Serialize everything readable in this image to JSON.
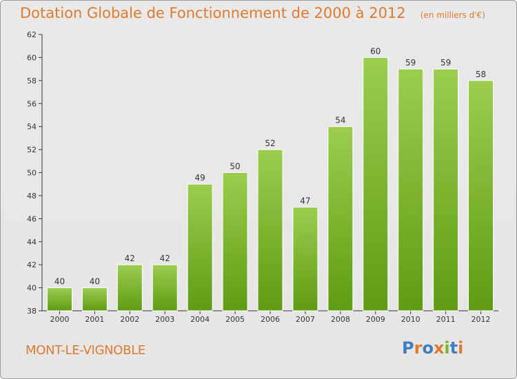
{
  "title": "Dotation Globale de Fonctionnement de 2000 à 2012",
  "unit": "(en milliers d'€)",
  "city": "MONT-LE-VIGNOBLE",
  "logo": {
    "text": "Proxiti",
    "letter_colors": [
      "#3d7fc4",
      "#e07a2c",
      "#3d7fc4",
      "#e07a2c",
      "#7cb52b",
      "#3d7fc4",
      "#e07a2c"
    ]
  },
  "colors": {
    "bar_top": "#9ccd4f",
    "bar_bottom": "#5e9c12",
    "accent": "#e07a2c"
  },
  "chart_data": {
    "type": "bar",
    "title": "Dotation Globale de Fonctionnement de 2000 à 2012",
    "xlabel": "",
    "ylabel": "",
    "categories": [
      "2000",
      "2001",
      "2002",
      "2003",
      "2004",
      "2005",
      "2006",
      "2007",
      "2008",
      "2009",
      "2010",
      "2011",
      "2012"
    ],
    "values": [
      40,
      40,
      42,
      42,
      49,
      50,
      52,
      47,
      54,
      60,
      59,
      59,
      58
    ],
    "ylim": [
      38,
      62
    ],
    "yticks": [
      38,
      40,
      42,
      44,
      46,
      48,
      50,
      52,
      54,
      56,
      58,
      60,
      62
    ],
    "grid": false,
    "data_labels": true
  }
}
